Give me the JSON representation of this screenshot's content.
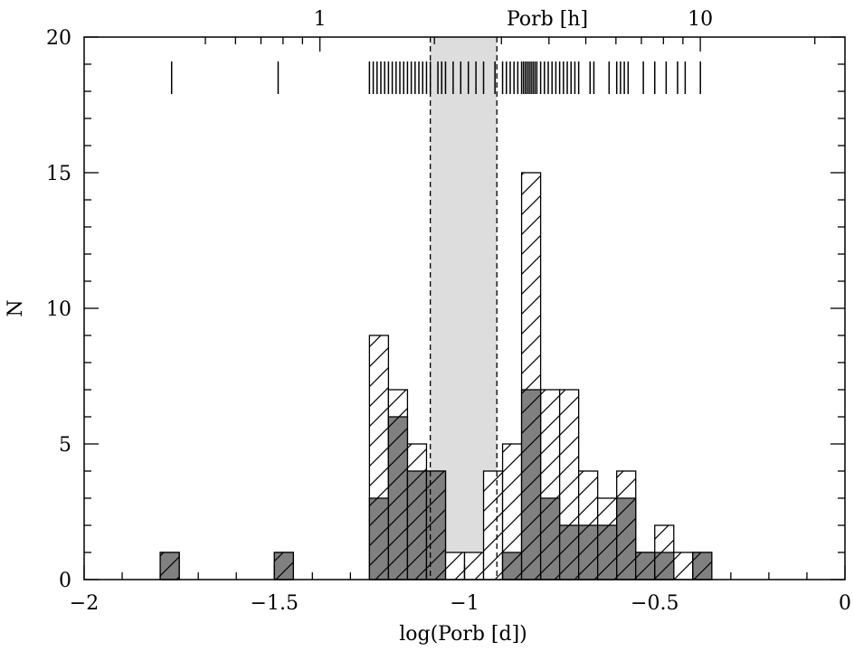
{
  "chart_data": {
    "type": "histogram",
    "xlabel": "log(Porb [d])",
    "ylabel": "N",
    "top_axis_label": "Porb [h]",
    "xlim": [
      -2,
      0
    ],
    "ylim": [
      0,
      20
    ],
    "x_ticks": [
      {
        "value": -2,
        "label": "−2"
      },
      {
        "value": -1.5,
        "label": "−1.5"
      },
      {
        "value": -1,
        "label": "−1"
      },
      {
        "value": -0.5,
        "label": "−0.5"
      },
      {
        "value": 0,
        "label": "0"
      }
    ],
    "y_ticks": [
      {
        "value": 0,
        "label": "0"
      },
      {
        "value": 5,
        "label": "5"
      },
      {
        "value": 10,
        "label": "10"
      },
      {
        "value": 15,
        "label": "15"
      },
      {
        "value": 20,
        "label": "20"
      }
    ],
    "top_ticks": [
      {
        "hours": 1,
        "label": "1"
      },
      {
        "hours": 10,
        "label": "10"
      }
    ],
    "bin_edges": [
      -1.8,
      -1.75,
      -1.5,
      -1.45,
      -1.25,
      -1.2,
      -1.15,
      -1.1,
      -1.05,
      -1.0,
      -0.95,
      -0.9,
      -0.85,
      -0.8,
      -0.75,
      -0.7,
      -0.65,
      -0.6,
      -0.55,
      -0.5,
      -0.45,
      -0.4,
      -0.35
    ],
    "series": [
      {
        "kind": "hatched",
        "bins": [
          {
            "x0": -1.8,
            "x1": -1.75,
            "value": 1
          },
          {
            "x0": -1.5,
            "x1": -1.45,
            "value": 1
          },
          {
            "x0": -1.25,
            "x1": -1.2,
            "value": 9
          },
          {
            "x0": -1.2,
            "x1": -1.15,
            "value": 7
          },
          {
            "x0": -1.15,
            "x1": -1.1,
            "value": 5
          },
          {
            "x0": -1.1,
            "x1": -1.05,
            "value": 4
          },
          {
            "x0": -1.05,
            "x1": -1.0,
            "value": 1
          },
          {
            "x0": -1.0,
            "x1": -0.95,
            "value": 1
          },
          {
            "x0": -0.95,
            "x1": -0.9,
            "value": 4
          },
          {
            "x0": -0.9,
            "x1": -0.85,
            "value": 5
          },
          {
            "x0": -0.85,
            "x1": -0.8,
            "value": 15
          },
          {
            "x0": -0.8,
            "x1": -0.75,
            "value": 7
          },
          {
            "x0": -0.75,
            "x1": -0.7,
            "value": 7
          },
          {
            "x0": -0.7,
            "x1": -0.65,
            "value": 4
          },
          {
            "x0": -0.65,
            "x1": -0.6,
            "value": 3
          },
          {
            "x0": -0.6,
            "x1": -0.55,
            "value": 4
          },
          {
            "x0": -0.55,
            "x1": -0.5,
            "value": 1
          },
          {
            "x0": -0.5,
            "x1": -0.45,
            "value": 2
          },
          {
            "x0": -0.45,
            "x1": -0.4,
            "value": 1
          },
          {
            "x0": -0.4,
            "x1": -0.35,
            "value": 1
          }
        ]
      },
      {
        "kind": "filled",
        "bins": [
          {
            "x0": -1.8,
            "x1": -1.75,
            "value": 1
          },
          {
            "x0": -1.5,
            "x1": -1.45,
            "value": 1
          },
          {
            "x0": -1.25,
            "x1": -1.2,
            "value": 3
          },
          {
            "x0": -1.2,
            "x1": -1.15,
            "value": 6
          },
          {
            "x0": -1.15,
            "x1": -1.1,
            "value": 4
          },
          {
            "x0": -1.1,
            "x1": -1.05,
            "value": 4
          },
          {
            "x0": -0.9,
            "x1": -0.85,
            "value": 1
          },
          {
            "x0": -0.85,
            "x1": -0.8,
            "value": 7
          },
          {
            "x0": -0.8,
            "x1": -0.75,
            "value": 3
          },
          {
            "x0": -0.75,
            "x1": -0.7,
            "value": 2
          },
          {
            "x0": -0.7,
            "x1": -0.65,
            "value": 2
          },
          {
            "x0": -0.65,
            "x1": -0.6,
            "value": 2
          },
          {
            "x0": -0.6,
            "x1": -0.55,
            "value": 3
          },
          {
            "x0": -0.55,
            "x1": -0.5,
            "value": 1
          },
          {
            "x0": -0.5,
            "x1": -0.45,
            "value": 1
          },
          {
            "x0": -0.4,
            "x1": -0.35,
            "value": 1
          }
        ]
      }
    ],
    "shaded_band": {
      "x0": -1.09,
      "x1": -0.915,
      "color": "#dddddd"
    },
    "rug_x": [
      -1.77,
      -1.49,
      -1.25,
      -1.24,
      -1.23,
      -1.22,
      -1.21,
      -1.2,
      -1.19,
      -1.18,
      -1.17,
      -1.16,
      -1.15,
      -1.14,
      -1.13,
      -1.12,
      -1.11,
      -1.1,
      -1.09,
      -1.07,
      -1.06,
      -1.05,
      -1.03,
      -1.01,
      -0.99,
      -0.97,
      -0.95,
      -0.92,
      -0.9,
      -0.89,
      -0.88,
      -0.87,
      -0.86,
      -0.85,
      -0.845,
      -0.84,
      -0.835,
      -0.83,
      -0.825,
      -0.82,
      -0.815,
      -0.81,
      -0.8,
      -0.79,
      -0.78,
      -0.77,
      -0.76,
      -0.75,
      -0.74,
      -0.73,
      -0.72,
      -0.71,
      -0.7,
      -0.67,
      -0.66,
      -0.62,
      -0.6,
      -0.59,
      -0.58,
      -0.57,
      -0.53,
      -0.5,
      -0.47,
      -0.44,
      -0.42,
      -0.38
    ],
    "colors": {
      "filled": "#808080",
      "band": "#dddddd",
      "line": "#000000"
    },
    "grid": false
  }
}
